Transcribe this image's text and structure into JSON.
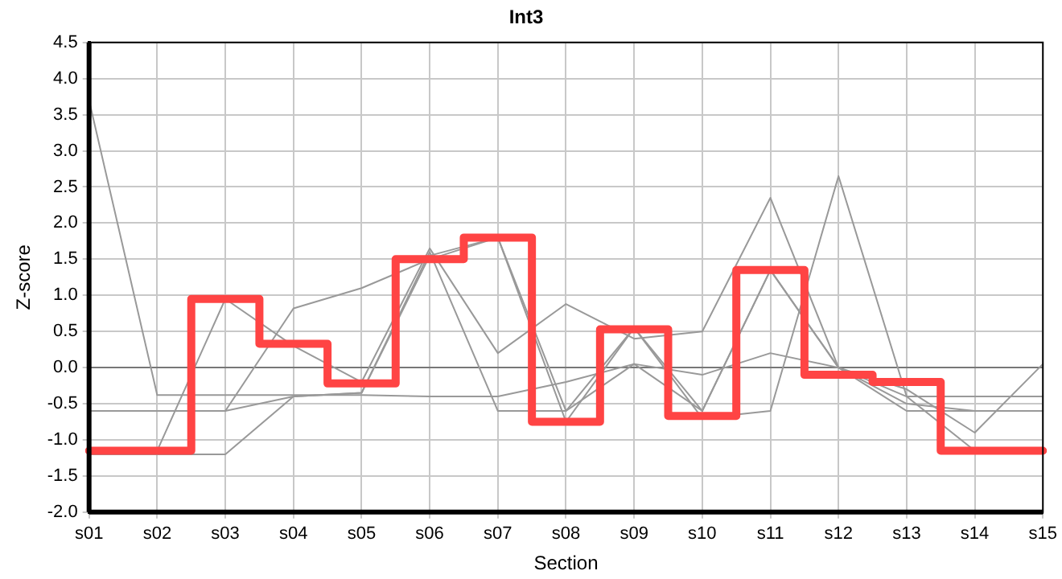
{
  "chart_data": {
    "type": "line",
    "title": "Int3",
    "xlabel": "Section",
    "ylabel": "Z-score",
    "categories": [
      "s01",
      "s02",
      "s03",
      "s04",
      "s05",
      "s06",
      "s07",
      "s08",
      "s09",
      "s10",
      "s11",
      "s12",
      "s13",
      "s14",
      "s15"
    ],
    "ylim": [
      -2,
      4.5
    ],
    "yticks": [
      {
        "value": -2,
        "label": "-2.0"
      },
      {
        "value": -1.5,
        "label": "-1.5"
      },
      {
        "value": -1,
        "label": "-1.0"
      },
      {
        "value": -0.5,
        "label": "-0.5"
      },
      {
        "value": 0,
        "label": "0.0"
      },
      {
        "value": 0.5,
        "label": "0.5"
      },
      {
        "value": 1,
        "label": "1.0"
      },
      {
        "value": 1.5,
        "label": "1.5"
      },
      {
        "value": 2,
        "label": "2.0"
      },
      {
        "value": 2.5,
        "label": "2.5"
      },
      {
        "value": 3,
        "label": "3.0"
      },
      {
        "value": 3.5,
        "label": "3.5"
      },
      {
        "value": 4,
        "label": "4.0"
      },
      {
        "value": 4.5,
        "label": "4.5"
      }
    ],
    "grid": true,
    "legend": false,
    "marker": "none",
    "ref_lines": [
      {
        "axis": "y",
        "value": 0,
        "color": "#777777"
      }
    ],
    "series": [
      {
        "color": "#999999",
        "values": [
          3.7,
          -0.38,
          -0.38,
          -0.38,
          -0.38,
          -0.4,
          -0.4,
          -0.2,
          0.05,
          -0.1,
          0.2,
          0.0,
          -0.4,
          -0.4,
          -0.4
        ]
      },
      {
        "color": "#999999",
        "values": [
          -0.6,
          -0.6,
          -0.6,
          0.82,
          1.1,
          1.5,
          1.8,
          -0.6,
          0.05,
          -0.6,
          1.35,
          0.0,
          -0.5,
          -0.6,
          -0.6
        ]
      },
      {
        "color": "#999999",
        "values": [
          -1.15,
          -1.15,
          0.95,
          0.3,
          -0.2,
          1.65,
          0.2,
          0.88,
          0.4,
          0.5,
          2.35,
          0.0,
          -0.6,
          -0.6,
          -0.6
        ]
      },
      {
        "color": "#999999",
        "values": [
          -1.2,
          -1.2,
          -1.2,
          -0.4,
          -0.35,
          1.6,
          -0.6,
          -0.6,
          0.55,
          -0.6,
          1.35,
          0.0,
          -0.3,
          -0.9,
          0.05
        ]
      },
      {
        "color": "#999999",
        "values": [
          -0.6,
          -0.6,
          -0.6,
          -0.4,
          -0.35,
          1.55,
          1.8,
          -0.75,
          0.55,
          -0.7,
          -0.6,
          2.65,
          -0.4,
          -1.15,
          -1.15
        ]
      },
      {
        "type": "step",
        "color": "#ff4444",
        "values": [
          -1.15,
          -1.15,
          0.95,
          0.33,
          -0.22,
          1.5,
          1.8,
          -0.75,
          0.53,
          -0.67,
          1.35,
          -0.1,
          -0.2,
          -1.15,
          -1.15
        ]
      }
    ]
  }
}
